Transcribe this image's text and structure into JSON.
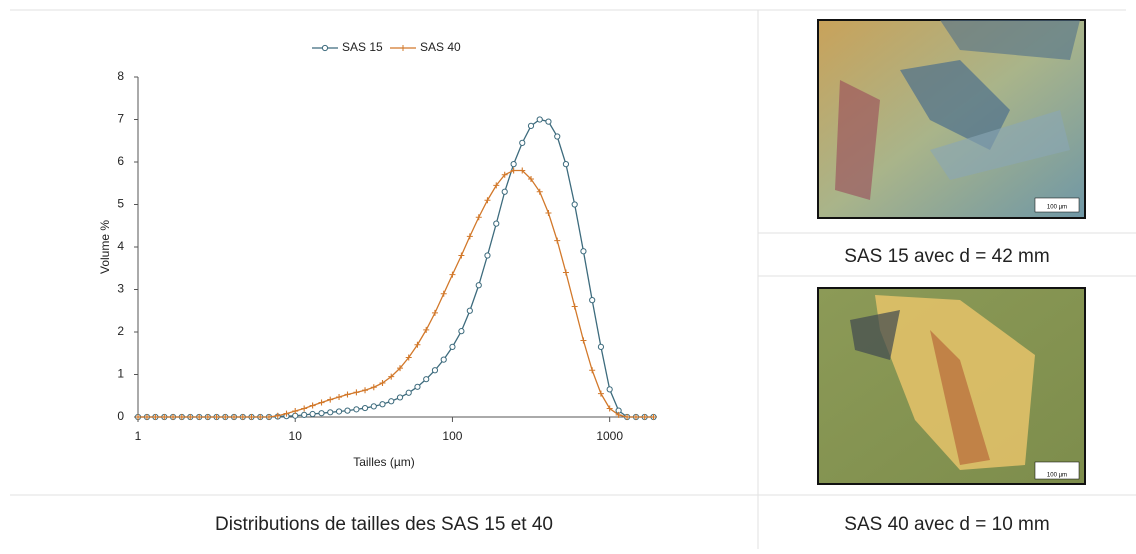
{
  "chart_data": {
    "type": "line",
    "x_label": "Tailles (µm)",
    "y_label": "Volume %",
    "x": [
      1,
      1.14,
      1.29,
      1.47,
      1.67,
      1.9,
      2.15,
      2.45,
      2.78,
      3.16,
      3.59,
      4.08,
      4.64,
      5.27,
      5.99,
      6.81,
      7.74,
      8.8,
      10,
      11.4,
      12.9,
      14.7,
      16.7,
      19,
      21.5,
      24.5,
      27.8,
      31.6,
      35.9,
      40.8,
      46.4,
      52.7,
      59.9,
      68.1,
      77.4,
      88,
      100,
      114,
      129,
      147,
      167,
      190,
      215,
      245,
      278,
      316,
      359,
      408,
      464,
      527,
      599,
      681,
      774,
      880,
      1000,
      1140,
      1290,
      1470,
      1670,
      1900
    ],
    "series": [
      {
        "name": "SAS 15",
        "color": "#3d6b7d",
        "marker": "circle",
        "values": [
          0,
          0,
          0,
          0,
          0,
          0,
          0,
          0,
          0,
          0,
          0,
          0,
          0,
          0,
          0,
          0,
          0.01,
          0.02,
          0.03,
          0.05,
          0.07,
          0.09,
          0.11,
          0.13,
          0.15,
          0.18,
          0.21,
          0.25,
          0.3,
          0.37,
          0.46,
          0.57,
          0.71,
          0.89,
          1.1,
          1.35,
          1.65,
          2.02,
          2.5,
          3.1,
          3.8,
          4.55,
          5.3,
          5.95,
          6.45,
          6.85,
          7.0,
          6.95,
          6.6,
          5.95,
          5.0,
          3.9,
          2.75,
          1.65,
          0.65,
          0.15,
          0,
          0,
          0,
          0
        ]
      },
      {
        "name": "SAS 40",
        "color": "#d2782a",
        "marker": "plus",
        "values": [
          0,
          0,
          0,
          0,
          0,
          0,
          0,
          0,
          0,
          0,
          0,
          0,
          0,
          0,
          0,
          0,
          0.03,
          0.08,
          0.14,
          0.2,
          0.27,
          0.34,
          0.41,
          0.47,
          0.53,
          0.58,
          0.63,
          0.7,
          0.8,
          0.95,
          1.15,
          1.4,
          1.7,
          2.05,
          2.45,
          2.9,
          3.35,
          3.8,
          4.25,
          4.7,
          5.1,
          5.45,
          5.7,
          5.8,
          5.8,
          5.6,
          5.3,
          4.8,
          4.15,
          3.4,
          2.6,
          1.8,
          1.1,
          0.55,
          0.2,
          0.05,
          0,
          0,
          0,
          0
        ]
      }
    ],
    "xscale": "log",
    "xlim": [
      1,
      2000
    ],
    "xticks": [
      1,
      10,
      100,
      1000
    ],
    "ylim": [
      0,
      8
    ],
    "yticks": [
      0,
      1,
      2,
      3,
      4,
      5,
      6,
      7,
      8
    ],
    "legend": "top"
  },
  "caption": "Distributions de tailles des SAS 15 et 40",
  "images": [
    {
      "scale_label": "100 µm",
      "caption": "SAS 15 avec d = 42 mm"
    },
    {
      "scale_label": "100 µm",
      "caption": "SAS 40 avec d = 10 mm"
    }
  ]
}
